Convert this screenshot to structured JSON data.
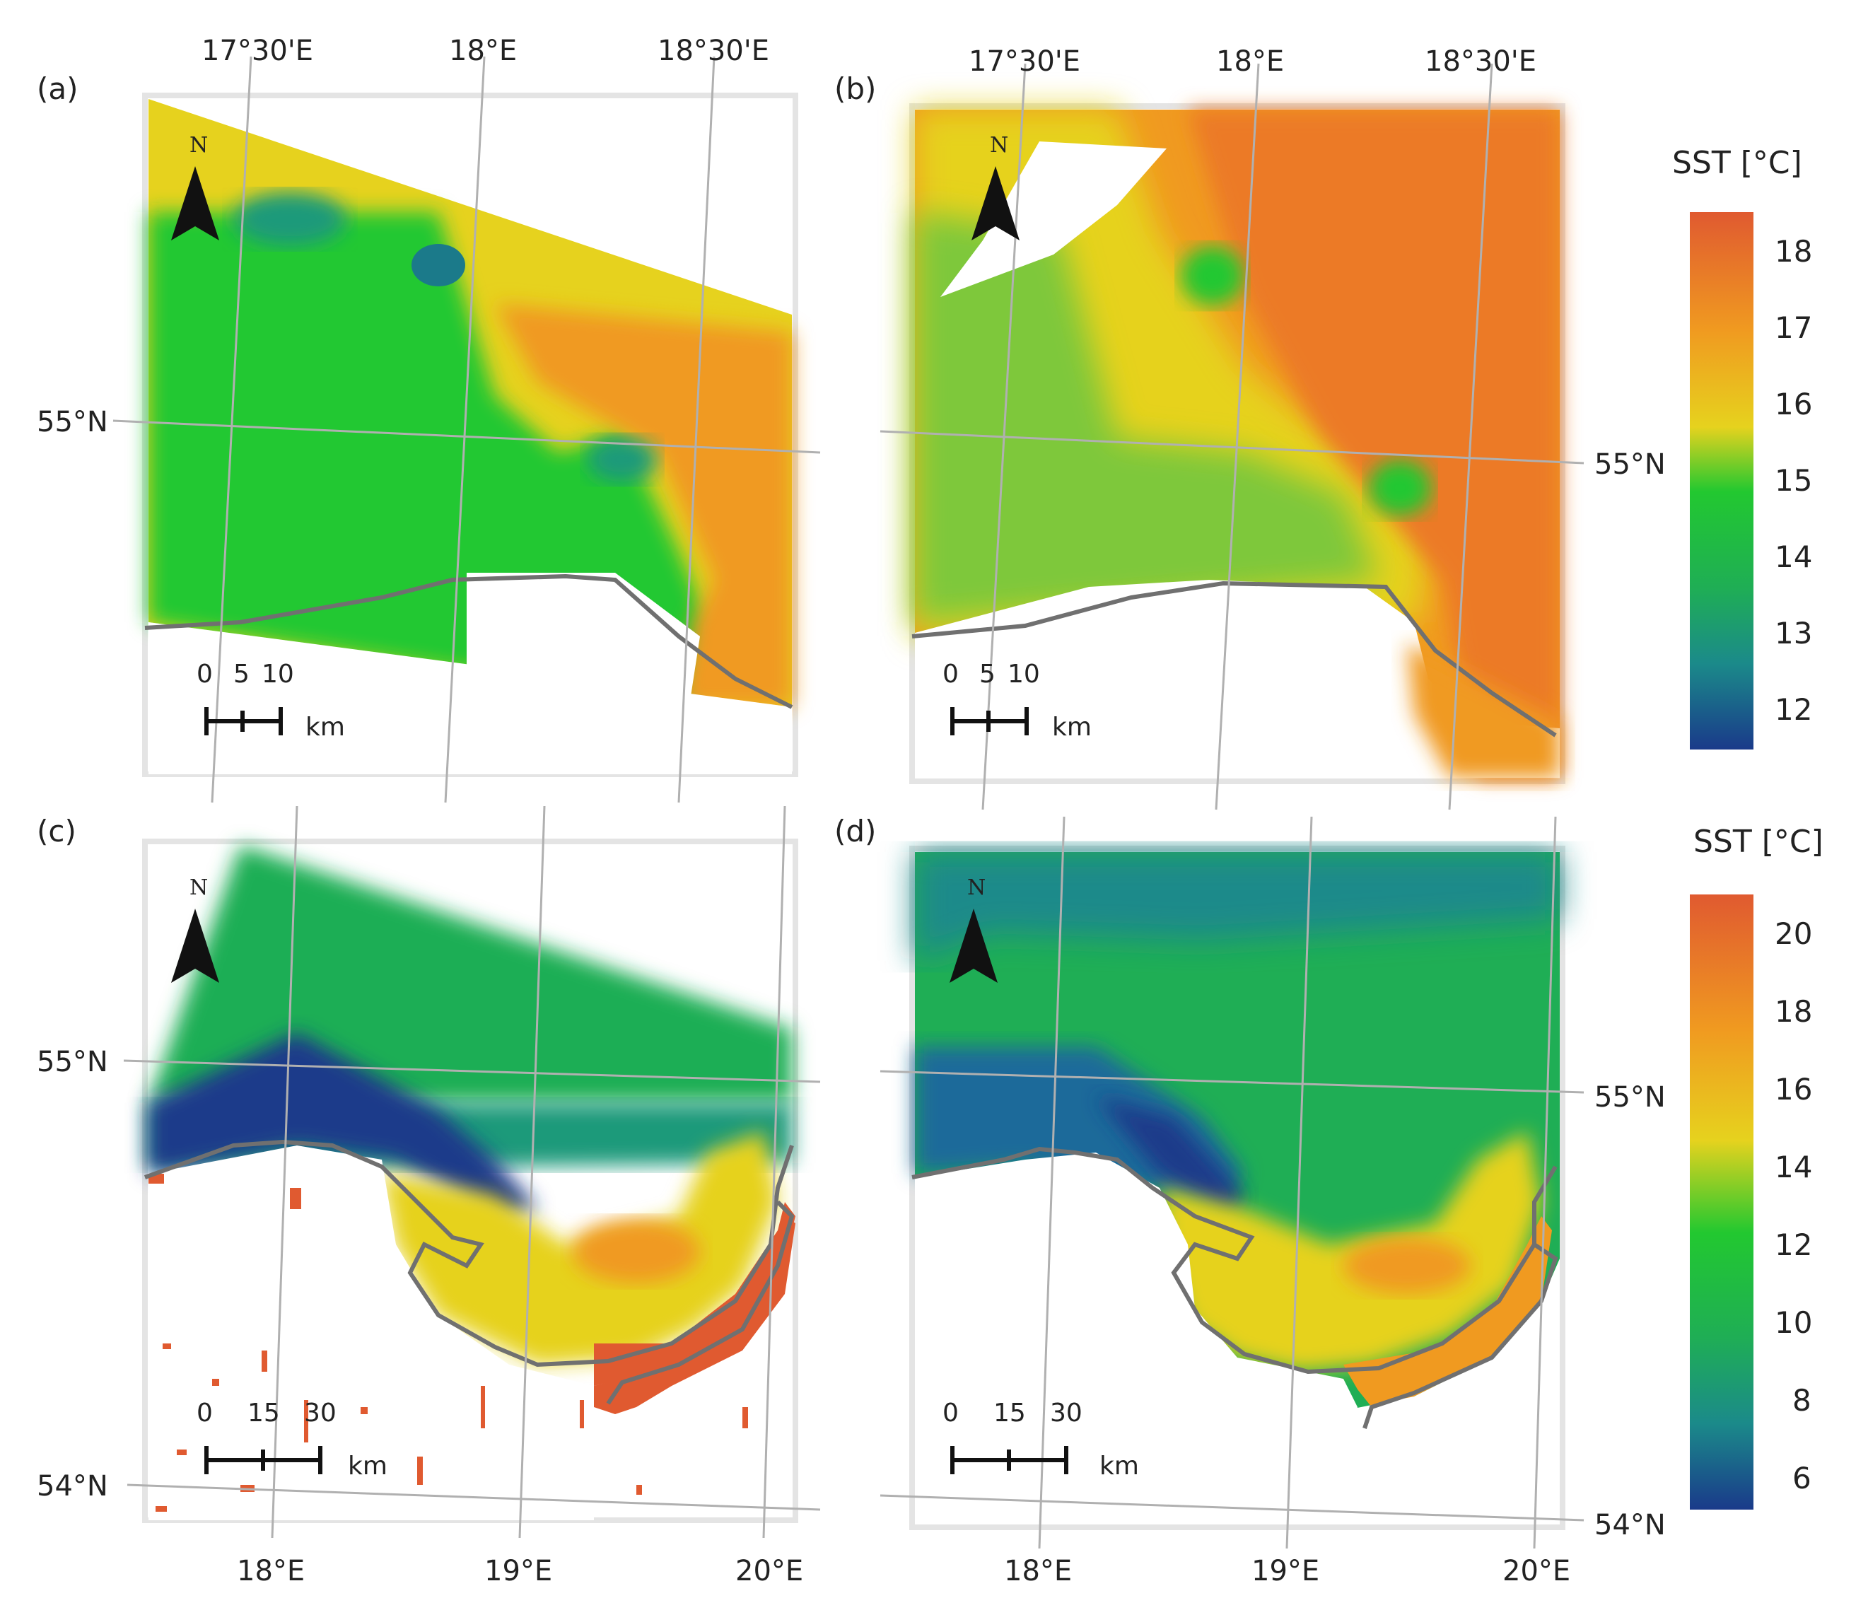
{
  "figure": {
    "panels": [
      {
        "label": "(a)",
        "top_labels": [
          "17°30'E",
          "18°E",
          "18°30'E"
        ],
        "side_labels": [
          "55°N"
        ],
        "scale": {
          "ticks": [
            "0",
            "5",
            "10"
          ],
          "unit": "km"
        },
        "north": "N"
      },
      {
        "label": "(b)",
        "top_labels": [
          "17°30'E",
          "18°E",
          "18°30'E"
        ],
        "side_labels": [
          "55°N"
        ],
        "scale": {
          "ticks": [
            "0",
            "5",
            "10"
          ],
          "unit": "km"
        },
        "north": "N"
      },
      {
        "label": "(c)",
        "bottom_labels": [
          "18°E",
          "19°E",
          "20°E"
        ],
        "side_labels": [
          "55°N",
          "54°N"
        ],
        "scale": {
          "ticks": [
            "0",
            "15",
            "30"
          ],
          "unit": "km"
        },
        "north": "N"
      },
      {
        "label": "(d)",
        "bottom_labels": [
          "18°E",
          "19°E",
          "20°E"
        ],
        "side_labels": [
          "55°N",
          "54°N"
        ],
        "scale": {
          "ticks": [
            "0",
            "15",
            "30"
          ],
          "unit": "km"
        },
        "north": "N"
      }
    ],
    "colorbars": [
      {
        "title": "SST [°C]",
        "ticks": [
          "18",
          "17",
          "16",
          "15",
          "14",
          "13",
          "12"
        ]
      },
      {
        "title": "SST [°C]",
        "ticks": [
          "20",
          "18",
          "16",
          "14",
          "12",
          "10",
          "8",
          "6"
        ]
      }
    ],
    "colors": {
      "sst_cold": "#1a3a8a",
      "sst_teal": "#1b9a7a",
      "sst_green": "#22c830",
      "sst_yellow": "#e6d21e",
      "sst_orange": "#f09a20",
      "sst_hot": "#e05a30",
      "coast": "#707070",
      "grid": "#b0b0b0"
    }
  }
}
